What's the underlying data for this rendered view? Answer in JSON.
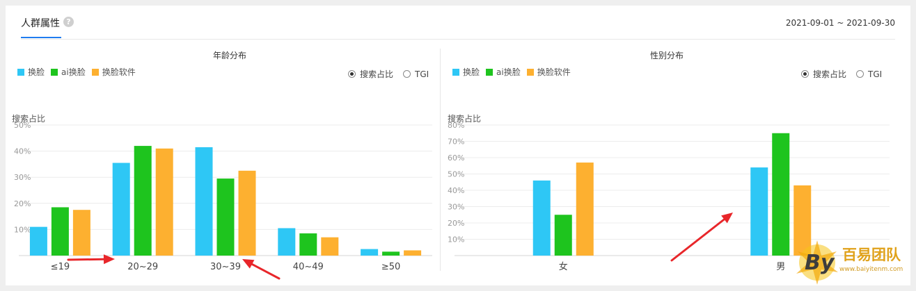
{
  "header": {
    "tab_label": "人群属性",
    "help_icon": "?",
    "date_range": "2021-09-01 ~ 2021-09-30"
  },
  "legend": [
    {
      "name": "换脸",
      "color": "#2ec7f5"
    },
    {
      "name": "ai换脸",
      "color": "#1ec41e"
    },
    {
      "name": "换脸软件",
      "color": "#fdb030"
    }
  ],
  "radio_options": [
    {
      "label": "搜索占比",
      "selected": true
    },
    {
      "label": "TGI",
      "selected": false
    }
  ],
  "watermark": {
    "brand_cn": "百易团队",
    "url": "www.baiyitenm.com",
    "logo_text": "By"
  },
  "chart_data": [
    {
      "type": "bar",
      "title": "年龄分布",
      "ylabel": "搜索占比",
      "categories": [
        "≤19",
        "20~29",
        "30~39",
        "40~49",
        "≥50"
      ],
      "ylim": [
        0,
        50
      ],
      "yticks": [
        "10%",
        "20%",
        "30%",
        "40%",
        "50%"
      ],
      "grid": true,
      "legend_position": "top-left",
      "series": [
        {
          "name": "换脸",
          "color": "#2ec7f5",
          "values": [
            11,
            35.5,
            41.5,
            10.5,
            2.5
          ]
        },
        {
          "name": "ai换脸",
          "color": "#1ec41e",
          "values": [
            18.5,
            42,
            29.5,
            8.5,
            1.5
          ]
        },
        {
          "name": "换脸软件",
          "color": "#fdb030",
          "values": [
            17.5,
            41,
            32.5,
            7,
            2
          ]
        }
      ],
      "annotations": [
        "red-arrow-to-20~29",
        "red-arrow-to-30~39"
      ]
    },
    {
      "type": "bar",
      "title": "性别分布",
      "ylabel": "搜索占比",
      "categories": [
        "女",
        "男"
      ],
      "ylim": [
        0,
        80
      ],
      "yticks": [
        "10%",
        "20%",
        "30%",
        "40%",
        "50%",
        "60%",
        "70%",
        "80%"
      ],
      "grid": true,
      "legend_position": "top-left",
      "series": [
        {
          "name": "换脸",
          "color": "#2ec7f5",
          "values": [
            46,
            54
          ]
        },
        {
          "name": "ai换脸",
          "color": "#1ec41e",
          "values": [
            25,
            75
          ]
        },
        {
          "name": "换脸软件",
          "color": "#fdb030",
          "values": [
            57,
            43
          ]
        }
      ],
      "annotations": [
        "red-arrow-to-男"
      ]
    }
  ]
}
